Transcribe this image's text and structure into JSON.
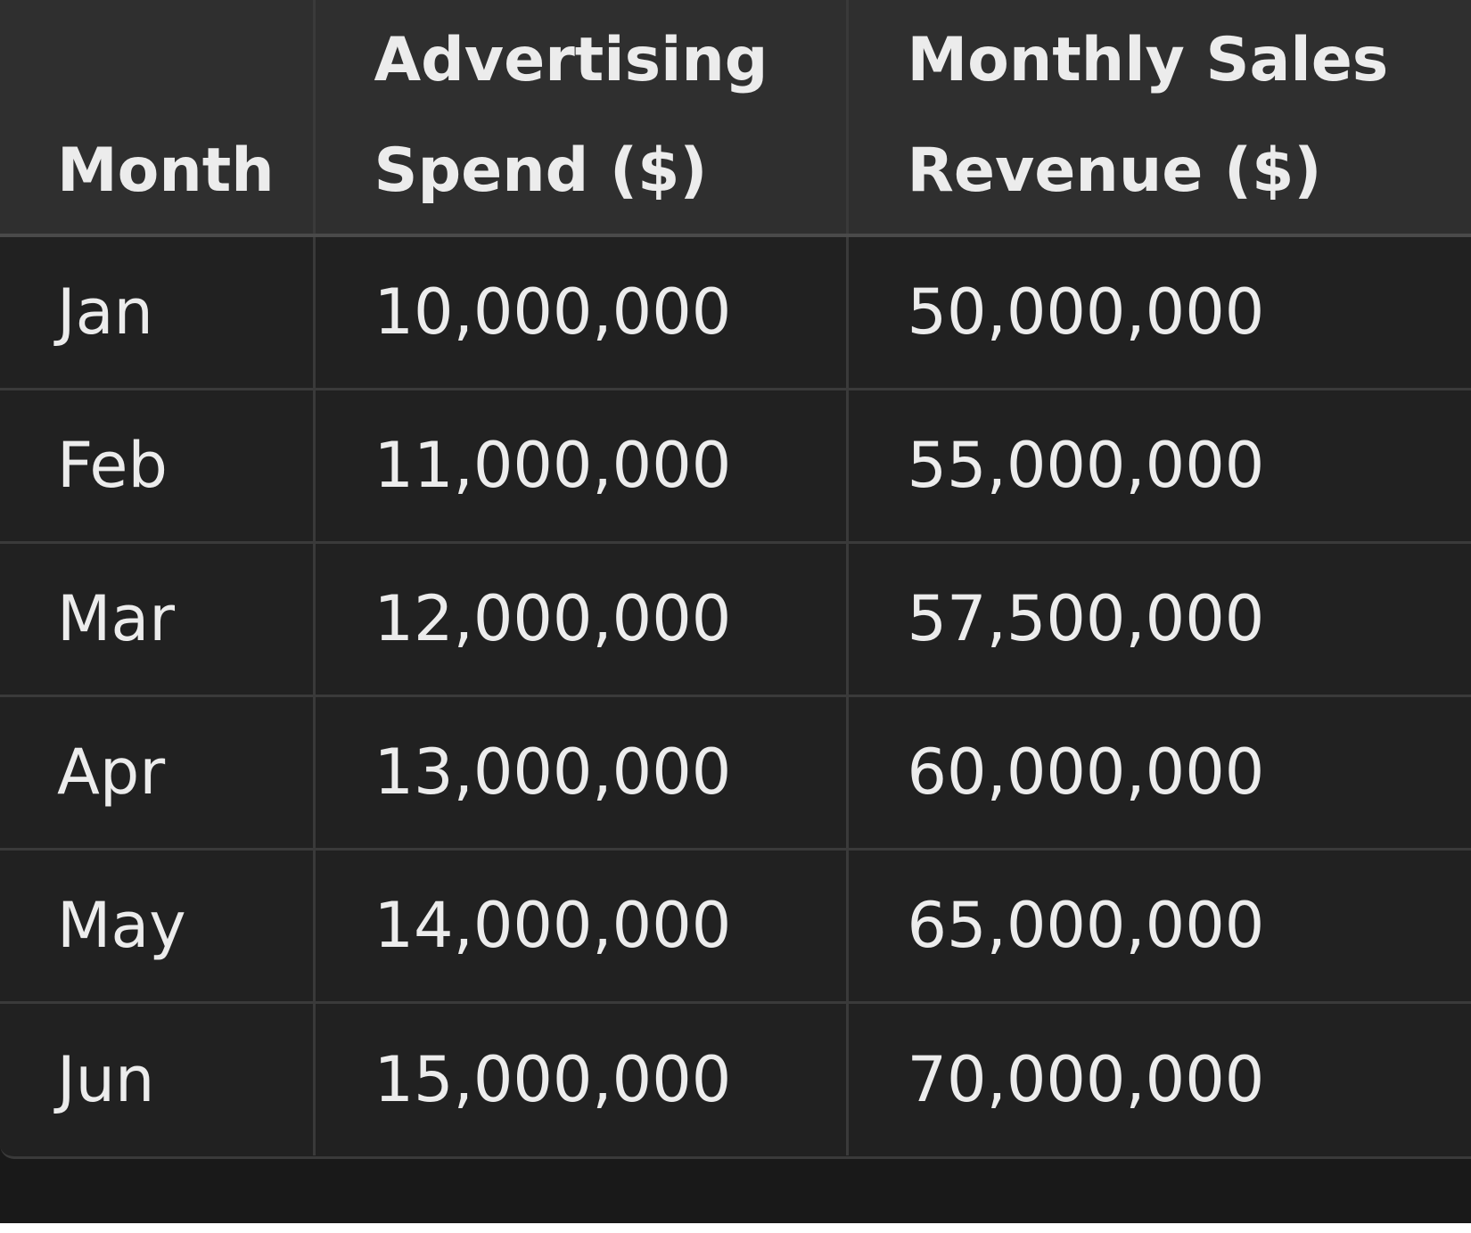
{
  "table": {
    "headers": [
      "Month",
      "Advertising Spend ($)",
      "Monthly Sales Revenue ($)"
    ],
    "rows": [
      [
        "Jan",
        "10,000,000",
        "50,000,000"
      ],
      [
        "Feb",
        "11,000,000",
        "55,000,000"
      ],
      [
        "Mar",
        "12,000,000",
        "57,500,000"
      ],
      [
        "Apr",
        "13,000,000",
        "60,000,000"
      ],
      [
        "May",
        "14,000,000",
        "65,000,000"
      ],
      [
        "Jun",
        "15,000,000",
        "70,000,000"
      ]
    ]
  },
  "colors": {
    "background": "#212121",
    "header_background": "#2f2f2f",
    "border": "#3a3a3a",
    "text": "#ececec"
  }
}
